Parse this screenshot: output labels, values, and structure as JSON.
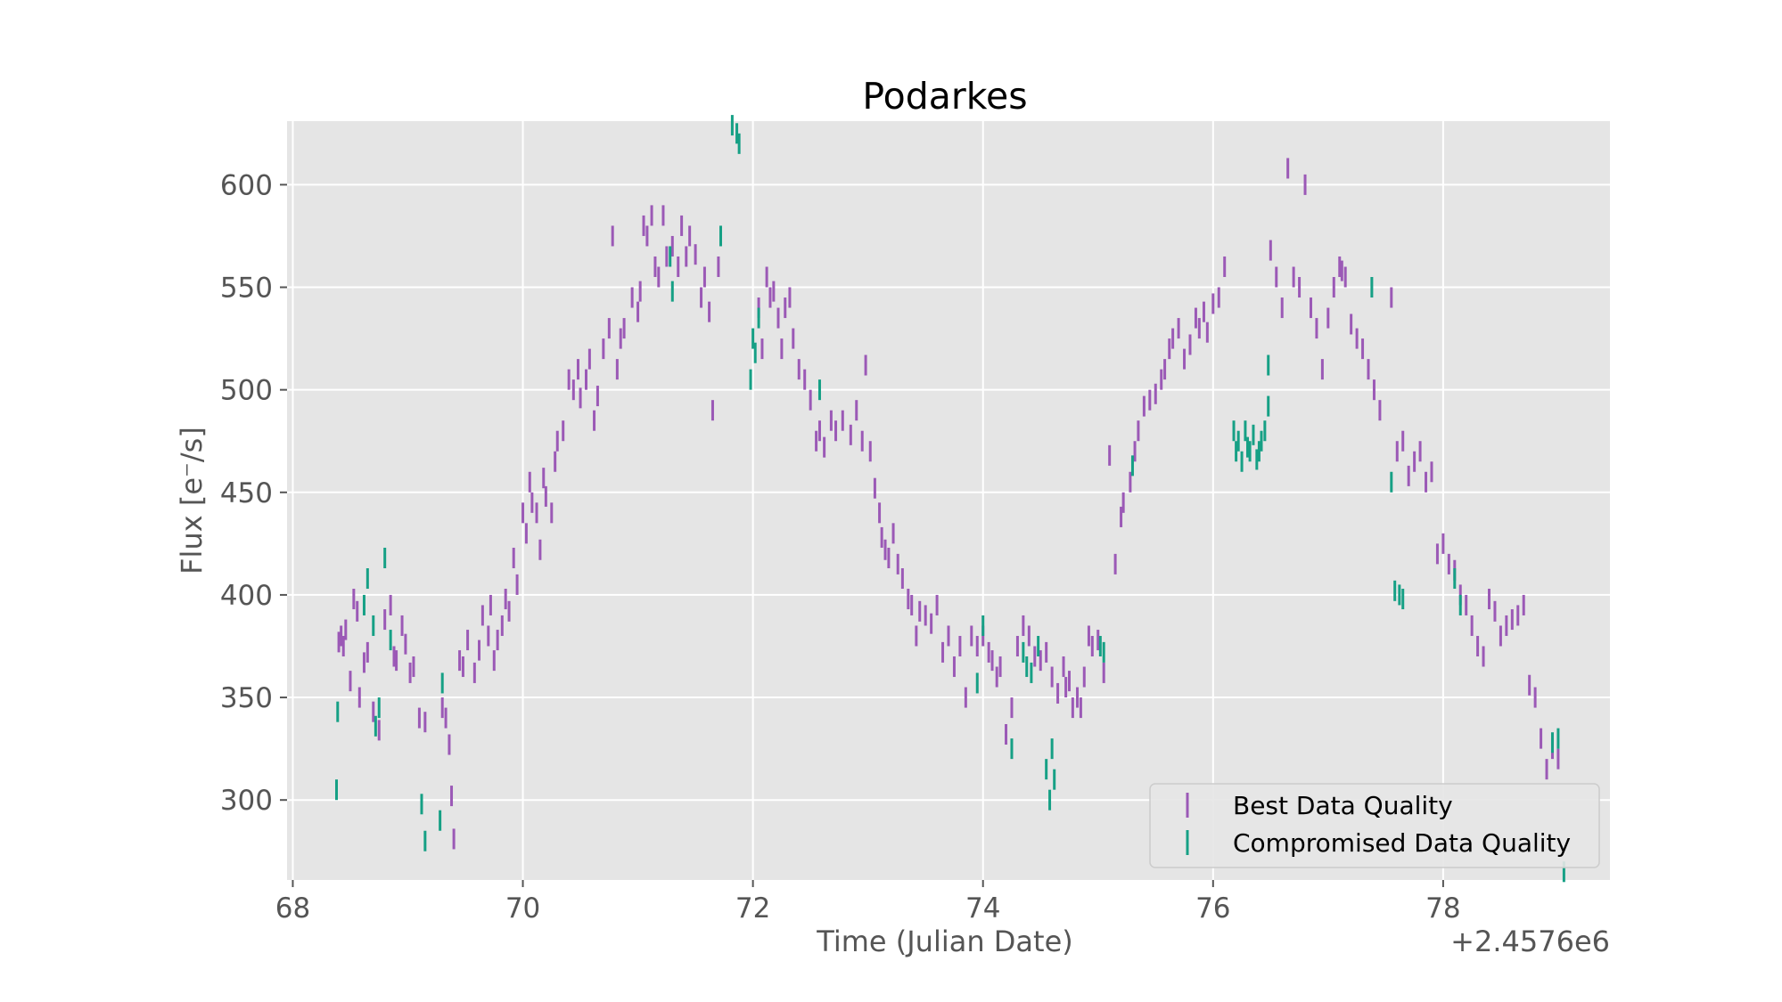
{
  "chart_data": {
    "type": "scatter",
    "title": "Podarkes",
    "xlabel": "Time (Julian Date)",
    "ylabel": "Flux [e$^-$/s]",
    "ylabel_display": "Flux [e⁻/s]",
    "x_offset_label": "+2.4576e6",
    "xlim": [
      67.95,
      79.45
    ],
    "ylim": [
      261,
      631
    ],
    "xticks": [
      68,
      70,
      72,
      74,
      76,
      78
    ],
    "xtick_labels": [
      "68",
      "70",
      "72",
      "74",
      "76",
      "78"
    ],
    "yticks": [
      300,
      350,
      400,
      450,
      500,
      550,
      600
    ],
    "ytick_labels": [
      "300",
      "350",
      "400",
      "450",
      "500",
      "550",
      "600"
    ],
    "grid": true,
    "legend_position": "lower-right",
    "series": [
      {
        "name": "Best Data Quality",
        "color": "#9b59b6",
        "error": 5,
        "points": [
          [
            68.4,
            377
          ],
          [
            68.42,
            380
          ],
          [
            68.44,
            375
          ],
          [
            68.46,
            383
          ],
          [
            68.5,
            358
          ],
          [
            68.53,
            398
          ],
          [
            68.56,
            392
          ],
          [
            68.58,
            350
          ],
          [
            68.62,
            367
          ],
          [
            68.65,
            372
          ],
          [
            68.7,
            343
          ],
          [
            68.75,
            334
          ],
          [
            68.8,
            388
          ],
          [
            68.85,
            395
          ],
          [
            68.88,
            370
          ],
          [
            68.9,
            368
          ],
          [
            68.95,
            385
          ],
          [
            68.98,
            376
          ],
          [
            69.02,
            362
          ],
          [
            69.05,
            365
          ],
          [
            69.1,
            340
          ],
          [
            69.15,
            338
          ],
          [
            69.3,
            345
          ],
          [
            69.33,
            340
          ],
          [
            69.36,
            327
          ],
          [
            69.38,
            302
          ],
          [
            69.4,
            281
          ],
          [
            69.45,
            368
          ],
          [
            69.48,
            365
          ],
          [
            69.52,
            378
          ],
          [
            69.58,
            362
          ],
          [
            69.62,
            373
          ],
          [
            69.65,
            390
          ],
          [
            69.7,
            380
          ],
          [
            69.72,
            395
          ],
          [
            69.75,
            368
          ],
          [
            69.78,
            378
          ],
          [
            69.82,
            385
          ],
          [
            69.85,
            398
          ],
          [
            69.88,
            392
          ],
          [
            69.92,
            418
          ],
          [
            69.95,
            405
          ],
          [
            70.0,
            440
          ],
          [
            70.03,
            430
          ],
          [
            70.06,
            455
          ],
          [
            70.08,
            445
          ],
          [
            70.12,
            440
          ],
          [
            70.15,
            422
          ],
          [
            70.18,
            457
          ],
          [
            70.2,
            448
          ],
          [
            70.25,
            440
          ],
          [
            70.28,
            465
          ],
          [
            70.3,
            475
          ],
          [
            70.35,
            480
          ],
          [
            70.4,
            505
          ],
          [
            70.44,
            500
          ],
          [
            70.48,
            510
          ],
          [
            70.5,
            496
          ],
          [
            70.55,
            505
          ],
          [
            70.58,
            515
          ],
          [
            70.62,
            485
          ],
          [
            70.65,
            497
          ],
          [
            70.7,
            520
          ],
          [
            70.75,
            530
          ],
          [
            70.78,
            575
          ],
          [
            70.82,
            510
          ],
          [
            70.85,
            525
          ],
          [
            70.88,
            530
          ],
          [
            70.95,
            545
          ],
          [
            71.0,
            538
          ],
          [
            71.02,
            548
          ],
          [
            71.05,
            580
          ],
          [
            71.08,
            575
          ],
          [
            71.12,
            585
          ],
          [
            71.15,
            560
          ],
          [
            71.18,
            555
          ],
          [
            71.22,
            585
          ],
          [
            71.25,
            565
          ],
          [
            71.3,
            570
          ],
          [
            71.35,
            560
          ],
          [
            71.38,
            580
          ],
          [
            71.42,
            565
          ],
          [
            71.45,
            575
          ],
          [
            71.5,
            566
          ],
          [
            71.55,
            545
          ],
          [
            71.58,
            555
          ],
          [
            71.62,
            538
          ],
          [
            71.65,
            490
          ],
          [
            71.7,
            560
          ],
          [
            72.05,
            540
          ],
          [
            72.08,
            520
          ],
          [
            72.12,
            555
          ],
          [
            72.15,
            545
          ],
          [
            72.18,
            548
          ],
          [
            72.22,
            535
          ],
          [
            72.25,
            520
          ],
          [
            72.28,
            540
          ],
          [
            72.32,
            545
          ],
          [
            72.35,
            525
          ],
          [
            72.4,
            510
          ],
          [
            72.45,
            505
          ],
          [
            72.5,
            495
          ],
          [
            72.55,
            475
          ],
          [
            72.58,
            480
          ],
          [
            72.62,
            472
          ],
          [
            72.68,
            485
          ],
          [
            72.72,
            480
          ],
          [
            72.78,
            485
          ],
          [
            72.85,
            478
          ],
          [
            72.9,
            490
          ],
          [
            72.95,
            475
          ],
          [
            72.98,
            512
          ],
          [
            73.02,
            470
          ],
          [
            73.06,
            452
          ],
          [
            73.1,
            440
          ],
          [
            73.12,
            428
          ],
          [
            73.15,
            422
          ],
          [
            73.18,
            418
          ],
          [
            73.22,
            430
          ],
          [
            73.26,
            415
          ],
          [
            73.3,
            408
          ],
          [
            73.35,
            398
          ],
          [
            73.38,
            395
          ],
          [
            73.42,
            380
          ],
          [
            73.45,
            392
          ],
          [
            73.5,
            390
          ],
          [
            73.55,
            386
          ],
          [
            73.6,
            395
          ],
          [
            73.65,
            372
          ],
          [
            73.7,
            380
          ],
          [
            73.75,
            365
          ],
          [
            73.8,
            375
          ],
          [
            73.85,
            350
          ],
          [
            73.9,
            380
          ],
          [
            73.95,
            375
          ],
          [
            74.0,
            380
          ],
          [
            74.05,
            372
          ],
          [
            74.08,
            368
          ],
          [
            74.12,
            360
          ],
          [
            74.15,
            365
          ],
          [
            74.2,
            332
          ],
          [
            74.25,
            345
          ],
          [
            74.3,
            375
          ],
          [
            74.35,
            385
          ],
          [
            74.4,
            380
          ],
          [
            74.45,
            370
          ],
          [
            74.5,
            368
          ],
          [
            74.55,
            372
          ],
          [
            74.6,
            360
          ],
          [
            74.65,
            352
          ],
          [
            74.7,
            365
          ],
          [
            74.72,
            355
          ],
          [
            74.75,
            358
          ],
          [
            74.78,
            345
          ],
          [
            74.82,
            350
          ],
          [
            74.85,
            345
          ],
          [
            74.88,
            360
          ],
          [
            74.92,
            380
          ],
          [
            74.95,
            375
          ],
          [
            75.0,
            378
          ],
          [
            75.05,
            362
          ],
          [
            75.1,
            468
          ],
          [
            75.15,
            415
          ],
          [
            75.2,
            438
          ],
          [
            75.22,
            445
          ],
          [
            75.28,
            455
          ],
          [
            75.32,
            470
          ],
          [
            75.35,
            480
          ],
          [
            75.4,
            492
          ],
          [
            75.45,
            495
          ],
          [
            75.5,
            498
          ],
          [
            75.55,
            505
          ],
          [
            75.58,
            510
          ],
          [
            75.62,
            520
          ],
          [
            75.65,
            525
          ],
          [
            75.7,
            530
          ],
          [
            75.75,
            515
          ],
          [
            75.8,
            522
          ],
          [
            75.85,
            535
          ],
          [
            75.88,
            530
          ],
          [
            75.92,
            538
          ],
          [
            75.95,
            528
          ],
          [
            76.0,
            542
          ],
          [
            76.05,
            545
          ],
          [
            76.1,
            560
          ],
          [
            76.5,
            568
          ],
          [
            76.55,
            555
          ],
          [
            76.6,
            540
          ],
          [
            76.65,
            608
          ],
          [
            76.7,
            555
          ],
          [
            76.75,
            550
          ],
          [
            76.8,
            600
          ],
          [
            76.85,
            540
          ],
          [
            76.9,
            530
          ],
          [
            76.95,
            510
          ],
          [
            77.0,
            535
          ],
          [
            77.05,
            550
          ],
          [
            77.1,
            560
          ],
          [
            77.12,
            558
          ],
          [
            77.15,
            555
          ],
          [
            77.2,
            532
          ],
          [
            77.25,
            525
          ],
          [
            77.3,
            520
          ],
          [
            77.35,
            510
          ],
          [
            77.4,
            500
          ],
          [
            77.45,
            490
          ],
          [
            77.55,
            545
          ],
          [
            77.6,
            470
          ],
          [
            77.65,
            475
          ],
          [
            77.7,
            458
          ],
          [
            77.75,
            465
          ],
          [
            77.8,
            470
          ],
          [
            77.85,
            455
          ],
          [
            77.9,
            460
          ],
          [
            77.95,
            420
          ],
          [
            78.0,
            425
          ],
          [
            78.05,
            415
          ],
          [
            78.1,
            412
          ],
          [
            78.15,
            400
          ],
          [
            78.2,
            395
          ],
          [
            78.25,
            385
          ],
          [
            78.3,
            375
          ],
          [
            78.35,
            370
          ],
          [
            78.4,
            398
          ],
          [
            78.45,
            392
          ],
          [
            78.5,
            380
          ],
          [
            78.55,
            385
          ],
          [
            78.6,
            388
          ],
          [
            78.65,
            390
          ],
          [
            78.7,
            395
          ],
          [
            78.75,
            356
          ],
          [
            78.8,
            350
          ],
          [
            78.85,
            330
          ],
          [
            78.9,
            315
          ],
          [
            78.95,
            325
          ],
          [
            79.0,
            320
          ]
        ]
      },
      {
        "name": "Compromised Data Quality",
        "color": "#16a085",
        "error": 5,
        "points": [
          [
            68.38,
            305
          ],
          [
            68.39,
            343
          ],
          [
            68.62,
            395
          ],
          [
            68.65,
            408
          ],
          [
            68.7,
            385
          ],
          [
            68.72,
            336
          ],
          [
            68.75,
            345
          ],
          [
            68.8,
            418
          ],
          [
            68.85,
            378
          ],
          [
            69.12,
            298
          ],
          [
            69.15,
            280
          ],
          [
            69.28,
            290
          ],
          [
            69.3,
            357
          ],
          [
            71.28,
            565
          ],
          [
            71.3,
            548
          ],
          [
            71.72,
            575
          ],
          [
            71.82,
            629
          ],
          [
            71.86,
            625
          ],
          [
            71.88,
            620
          ],
          [
            71.98,
            505
          ],
          [
            72.0,
            525
          ],
          [
            72.02,
            518
          ],
          [
            72.05,
            535
          ],
          [
            72.58,
            500
          ],
          [
            73.95,
            357
          ],
          [
            74.0,
            385
          ],
          [
            74.25,
            325
          ],
          [
            74.35,
            372
          ],
          [
            74.38,
            365
          ],
          [
            74.42,
            362
          ],
          [
            74.48,
            375
          ],
          [
            74.55,
            315
          ],
          [
            74.58,
            300
          ],
          [
            74.6,
            325
          ],
          [
            74.62,
            310
          ],
          [
            75.02,
            375
          ],
          [
            75.05,
            372
          ],
          [
            75.3,
            463
          ],
          [
            76.18,
            480
          ],
          [
            76.2,
            470
          ],
          [
            76.22,
            475
          ],
          [
            76.25,
            465
          ],
          [
            76.28,
            480
          ],
          [
            76.3,
            472
          ],
          [
            76.32,
            470
          ],
          [
            76.35,
            478
          ],
          [
            76.38,
            466
          ],
          [
            76.4,
            470
          ],
          [
            76.42,
            475
          ],
          [
            76.45,
            480
          ],
          [
            76.48,
            512
          ],
          [
            76.48,
            492
          ],
          [
            77.38,
            550
          ],
          [
            77.55,
            455
          ],
          [
            77.58,
            402
          ],
          [
            77.62,
            400
          ],
          [
            77.65,
            398
          ],
          [
            78.1,
            408
          ],
          [
            78.15,
            395
          ],
          [
            78.95,
            328
          ],
          [
            79.0,
            330
          ],
          [
            79.05,
            265
          ]
        ]
      }
    ]
  }
}
